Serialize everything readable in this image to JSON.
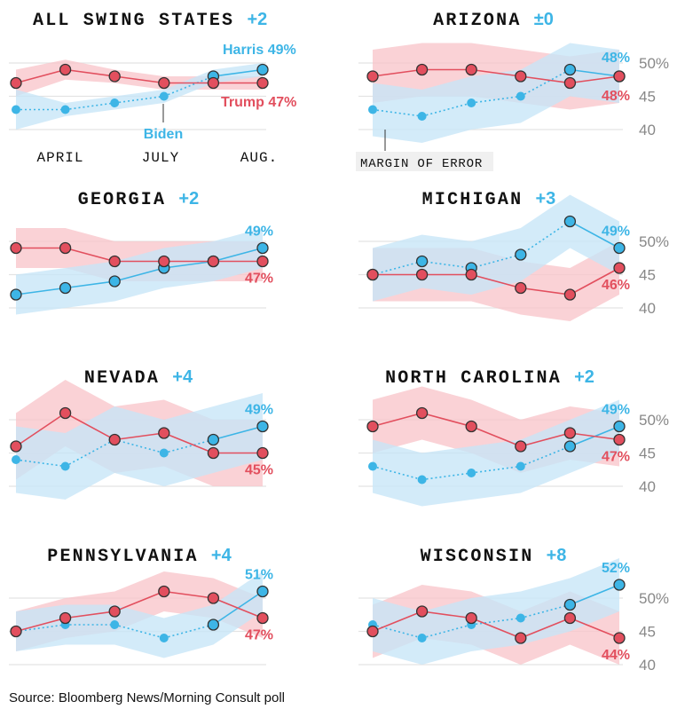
{
  "source": "Source: Bloomberg News/Morning Consult poll",
  "colors": {
    "harris": "#3db5e6",
    "trump": "#e24f5e",
    "harris_band": "#c6e6f7",
    "trump_band": "#f8c5ca",
    "grid": "#e3e3e3",
    "axis_text": "#888888"
  },
  "chart_data": [
    {
      "type": "line",
      "title": "ALL SWING STATES",
      "margin": "+2",
      "ylim": [
        40,
        50
      ],
      "ticks": [
        40,
        45,
        50
      ],
      "show_ticks": false,
      "x_tick_labels": [
        "APRIL",
        "JULY",
        "AUG."
      ],
      "series": [
        {
          "name": "Harris",
          "party": "harris",
          "values": [
            43,
            43,
            44,
            45,
            48,
            49
          ],
          "label": "Harris 49%",
          "band": [
            3,
            1,
            1,
            1,
            1,
            1
          ]
        },
        {
          "name": "Trump",
          "party": "trump",
          "values": [
            47,
            49,
            48,
            47,
            47,
            47
          ],
          "label": "Trump 47%",
          "band": [
            2,
            1.5,
            1,
            1,
            1,
            1
          ]
        }
      ],
      "annotations": [
        {
          "text": "Biden"
        }
      ]
    },
    {
      "type": "line",
      "title": "ARIZONA",
      "margin": "±0",
      "ylim": [
        40,
        50
      ],
      "ticks": [
        40,
        45,
        50
      ],
      "show_ticks": true,
      "series": [
        {
          "party": "harris",
          "values": [
            43,
            42,
            44,
            45,
            49,
            48
          ],
          "label": "48%",
          "band": [
            4,
            4,
            4,
            4,
            4,
            4
          ]
        },
        {
          "party": "trump",
          "values": [
            48,
            49,
            49,
            48,
            47,
            48
          ],
          "label": "48%",
          "band": [
            4,
            4,
            4,
            4,
            4,
            4
          ]
        }
      ],
      "annotations": [
        {
          "text": "MARGIN OF ERROR"
        }
      ]
    },
    {
      "type": "line",
      "title": "GEORGIA",
      "margin": "+2",
      "ylim": [
        40,
        50
      ],
      "ticks": [
        40,
        45,
        50
      ],
      "show_ticks": false,
      "series": [
        {
          "party": "harris",
          "values": [
            42,
            43,
            44,
            46,
            47,
            49
          ],
          "label": "49%",
          "band": [
            3,
            3,
            3,
            3,
            3,
            3
          ]
        },
        {
          "party": "trump",
          "values": [
            49,
            49,
            47,
            47,
            47,
            47
          ],
          "label": "47%",
          "band": [
            3,
            3,
            3,
            3,
            3,
            3
          ]
        }
      ]
    },
    {
      "type": "line",
      "title": "MICHIGAN",
      "margin": "+3",
      "ylim": [
        40,
        50
      ],
      "ticks": [
        40,
        45,
        50
      ],
      "show_ticks": true,
      "series": [
        {
          "party": "harris",
          "values": [
            45,
            47,
            46,
            48,
            53,
            49
          ],
          "label": "49%",
          "band": [
            4,
            4,
            4,
            4,
            4,
            4
          ]
        },
        {
          "party": "trump",
          "values": [
            45,
            45,
            45,
            43,
            42,
            46
          ],
          "label": "46%",
          "band": [
            4,
            4,
            4,
            4,
            4,
            4
          ]
        }
      ]
    },
    {
      "type": "line",
      "title": "NEVADA",
      "margin": "+4",
      "ylim": [
        40,
        50
      ],
      "ticks": [
        40,
        45,
        50
      ],
      "show_ticks": false,
      "series": [
        {
          "party": "harris",
          "values": [
            44,
            43,
            47,
            45,
            47,
            49
          ],
          "label": "49%",
          "band": [
            5,
            5,
            5,
            5,
            5,
            5
          ]
        },
        {
          "party": "trump",
          "values": [
            46,
            51,
            47,
            48,
            45,
            45
          ],
          "label": "45%",
          "band": [
            5,
            5,
            5,
            5,
            5,
            5
          ]
        }
      ]
    },
    {
      "type": "line",
      "title": "NORTH CAROLINA",
      "margin": "+2",
      "ylim": [
        40,
        50
      ],
      "ticks": [
        40,
        45,
        50
      ],
      "show_ticks": true,
      "series": [
        {
          "party": "harris",
          "values": [
            43,
            41,
            42,
            43,
            46,
            49
          ],
          "label": "49%",
          "band": [
            4,
            4,
            4,
            4,
            4,
            4
          ]
        },
        {
          "party": "trump",
          "values": [
            49,
            51,
            49,
            46,
            48,
            47
          ],
          "label": "47%",
          "band": [
            4,
            4,
            4,
            4,
            4,
            4
          ]
        }
      ]
    },
    {
      "type": "line",
      "title": "PENNSYLVANIA",
      "margin": "+4",
      "ylim": [
        40,
        50
      ],
      "ticks": [
        40,
        45,
        50
      ],
      "show_ticks": false,
      "series": [
        {
          "party": "harris",
          "values": [
            45,
            46,
            46,
            44,
            46,
            51
          ],
          "label": "51%",
          "band": [
            3,
            3,
            3,
            3,
            3,
            3
          ]
        },
        {
          "party": "trump",
          "values": [
            45,
            47,
            48,
            51,
            50,
            47
          ],
          "label": "47%",
          "band": [
            3,
            3,
            3,
            3,
            3,
            3
          ]
        }
      ]
    },
    {
      "type": "line",
      "title": "WISCONSIN",
      "margin": "+8",
      "ylim": [
        40,
        50
      ],
      "ticks": [
        40,
        45,
        50
      ],
      "show_ticks": true,
      "series": [
        {
          "party": "harris",
          "values": [
            46,
            44,
            46,
            47,
            49,
            52
          ],
          "label": "52%",
          "band": [
            4,
            4,
            4,
            4,
            4,
            4
          ]
        },
        {
          "party": "trump",
          "values": [
            45,
            48,
            47,
            44,
            47,
            44
          ],
          "label": "44%",
          "band": [
            4,
            4,
            4,
            4,
            4,
            4
          ]
        }
      ]
    }
  ]
}
